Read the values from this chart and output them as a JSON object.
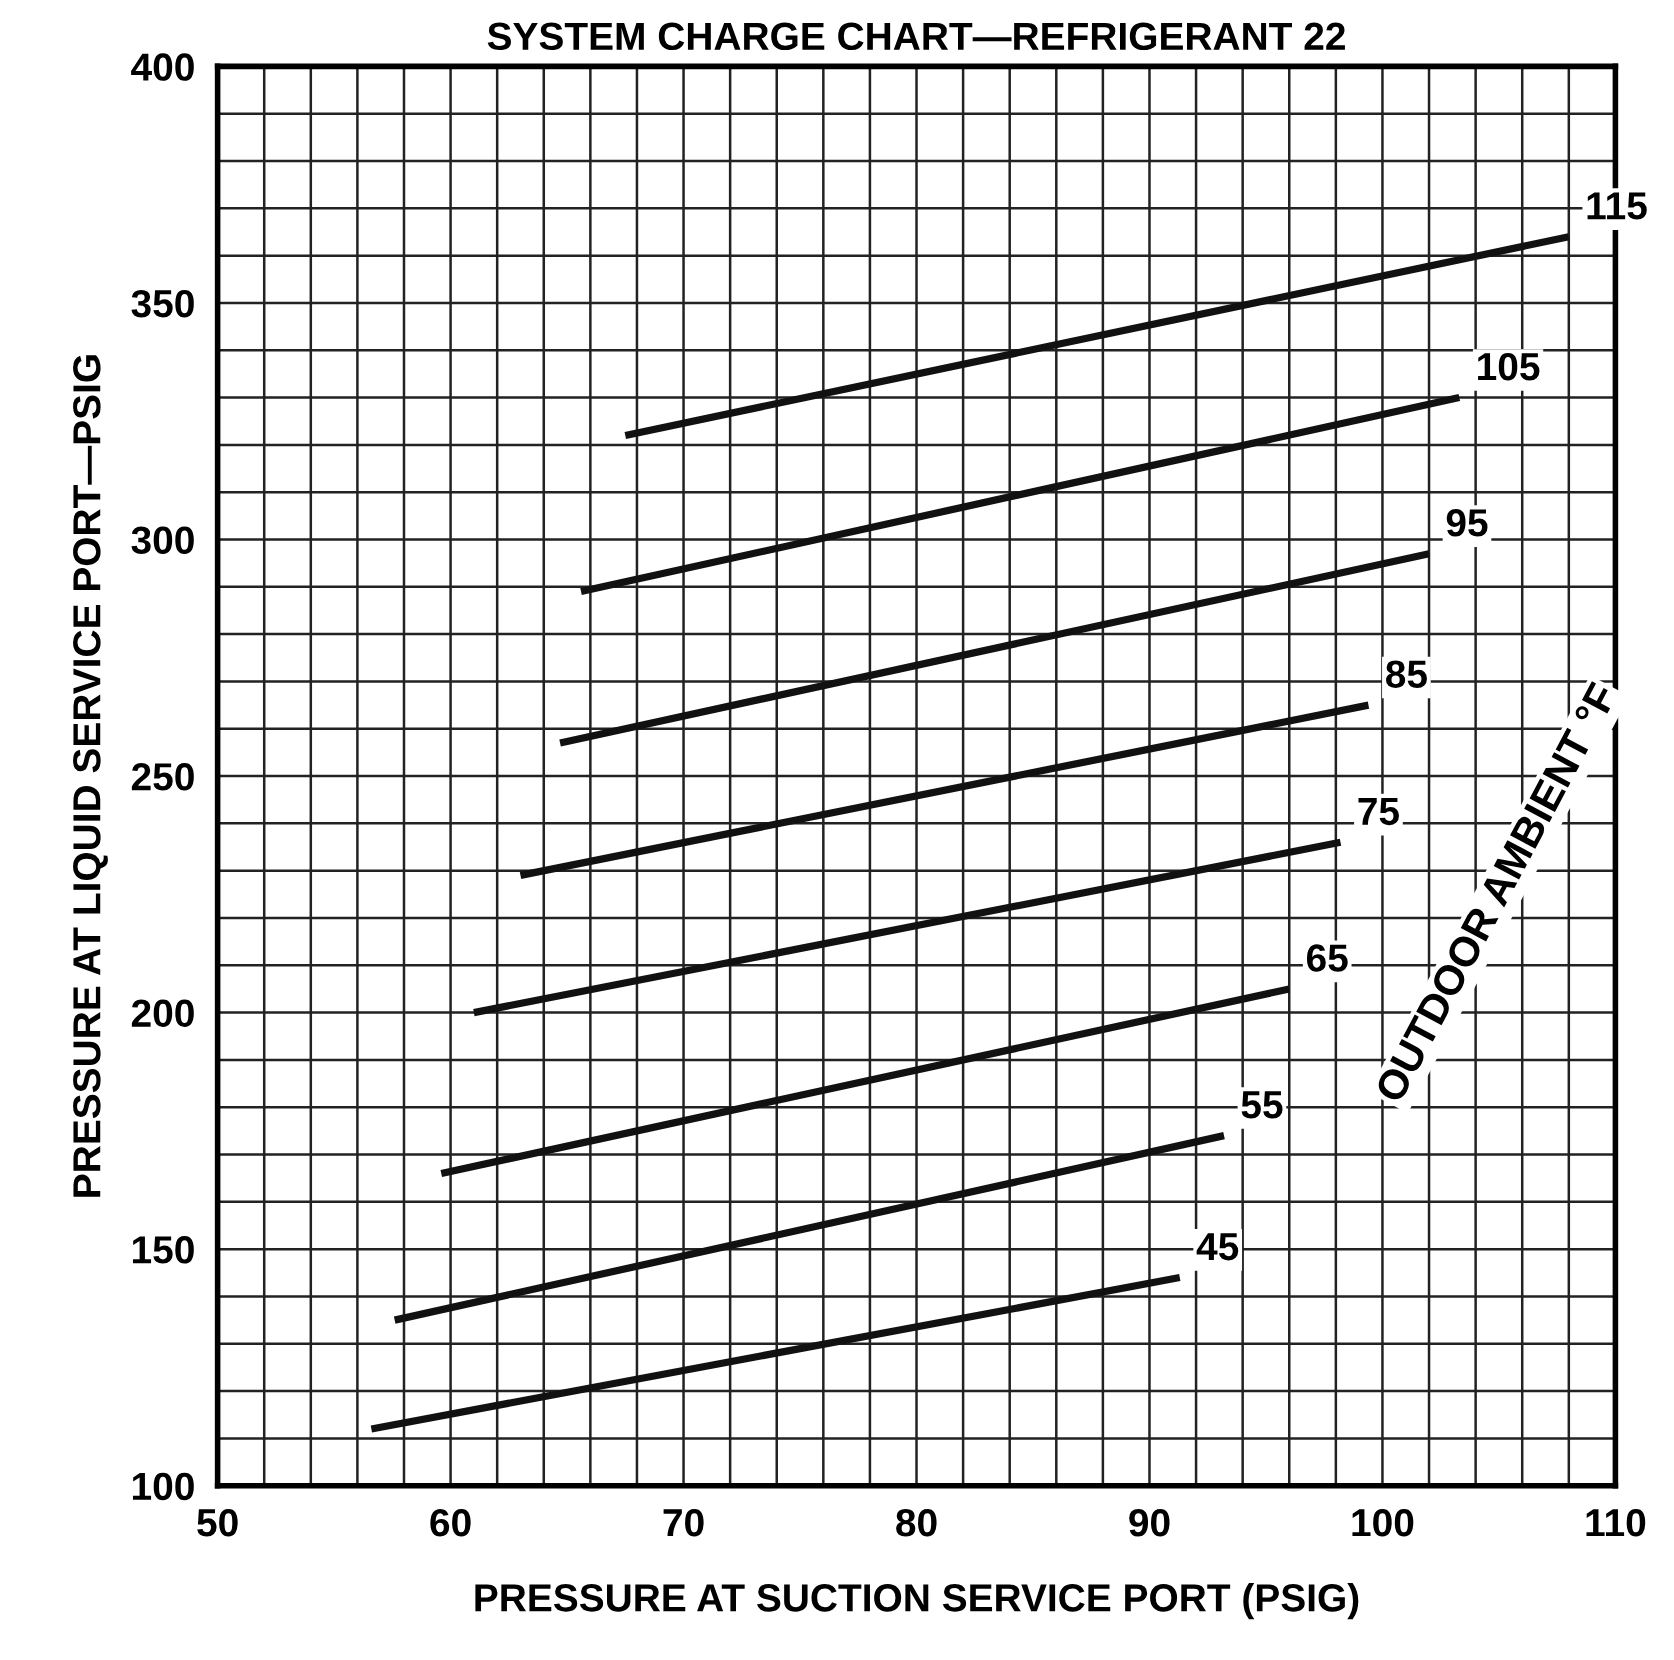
{
  "chart_data": {
    "type": "line",
    "title": "SYSTEM CHARGE CHART—REFRIGERANT 22",
    "xlabel": "PRESSURE AT SUCTION SERVICE PORT (PSIG)",
    "ylabel": "PRESSURE AT LIQUID SERVICE PORT—PSIG",
    "legend_title": "OUTDOOR AMBIENT °F",
    "xlim": [
      50,
      110
    ],
    "ylim": [
      100,
      400
    ],
    "xticks": [
      50,
      {
        "value": 52,
        "label": null
      },
      {
        "value": 54,
        "label": null
      },
      {
        "value": 56,
        "label": null
      },
      {
        "value": 58,
        "label": null
      },
      60,
      {
        "value": 62,
        "label": null
      },
      {
        "value": 64,
        "label": null
      },
      {
        "value": 66,
        "label": null
      },
      {
        "value": 68,
        "label": null
      },
      70,
      {
        "value": 72,
        "label": null
      },
      {
        "value": 74,
        "label": null
      },
      {
        "value": 76,
        "label": null
      },
      {
        "value": 78,
        "label": null
      },
      80,
      {
        "value": 82,
        "label": null
      },
      {
        "value": 84,
        "label": null
      },
      {
        "value": 86,
        "label": null
      },
      {
        "value": 88,
        "label": null
      },
      90,
      {
        "value": 92,
        "label": null
      },
      {
        "value": 94,
        "label": null
      },
      {
        "value": 96,
        "label": null
      },
      {
        "value": 98,
        "label": null
      },
      100,
      {
        "value": 102,
        "label": null
      },
      {
        "value": 104,
        "label": null
      },
      {
        "value": 106,
        "label": null
      },
      {
        "value": 108,
        "label": null
      },
      110
    ],
    "yticks": [
      100,
      {
        "value": 110,
        "label": null
      },
      {
        "value": 120,
        "label": null
      },
      {
        "value": 130,
        "label": null
      },
      {
        "value": 140,
        "label": null
      },
      150,
      {
        "value": 160,
        "label": null
      },
      {
        "value": 170,
        "label": null
      },
      {
        "value": 180,
        "label": null
      },
      {
        "value": 190,
        "label": null
      },
      200,
      {
        "value": 210,
        "label": null
      },
      {
        "value": 220,
        "label": null
      },
      {
        "value": 230,
        "label": null
      },
      {
        "value": 240,
        "label": null
      },
      250,
      {
        "value": 260,
        "label": null
      },
      {
        "value": 270,
        "label": null
      },
      {
        "value": 280,
        "label": null
      },
      {
        "value": 290,
        "label": null
      },
      300,
      {
        "value": 310,
        "label": null
      },
      {
        "value": 320,
        "label": null
      },
      {
        "value": 330,
        "label": null
      },
      {
        "value": 340,
        "label": null
      },
      350,
      {
        "value": 360,
        "label": null
      },
      {
        "value": 370,
        "label": null
      },
      {
        "value": 380,
        "label": null
      },
      {
        "value": 390,
        "label": null
      },
      400
    ],
    "grid": true,
    "line_style": "solid",
    "marker": "none",
    "series": [
      {
        "name": "115",
        "color": "#111111",
        "x": [
          67.5,
          108
        ],
        "values": [
          322,
          364
        ]
      },
      {
        "name": "105",
        "color": "#111111",
        "x": [
          65.6,
          103.3
        ],
        "values": [
          289,
          330
        ]
      },
      {
        "name": "95",
        "color": "#111111",
        "x": [
          64.7,
          102
        ],
        "values": [
          257,
          297
        ]
      },
      {
        "name": "85",
        "color": "#111111",
        "x": [
          63,
          99.4
        ],
        "values": [
          229,
          265
        ]
      },
      {
        "name": "75",
        "color": "#111111",
        "x": [
          61,
          98.2
        ],
        "values": [
          200,
          236
        ]
      },
      {
        "name": "65",
        "color": "#111111",
        "x": [
          59.6,
          96
        ],
        "values": [
          166,
          205
        ]
      },
      {
        "name": "55",
        "color": "#111111",
        "x": [
          57.6,
          93.2
        ],
        "values": [
          135,
          174
        ]
      },
      {
        "name": "45",
        "color": "#111111",
        "x": [
          56.6,
          91.3
        ],
        "values": [
          112,
          144
        ]
      }
    ]
  }
}
